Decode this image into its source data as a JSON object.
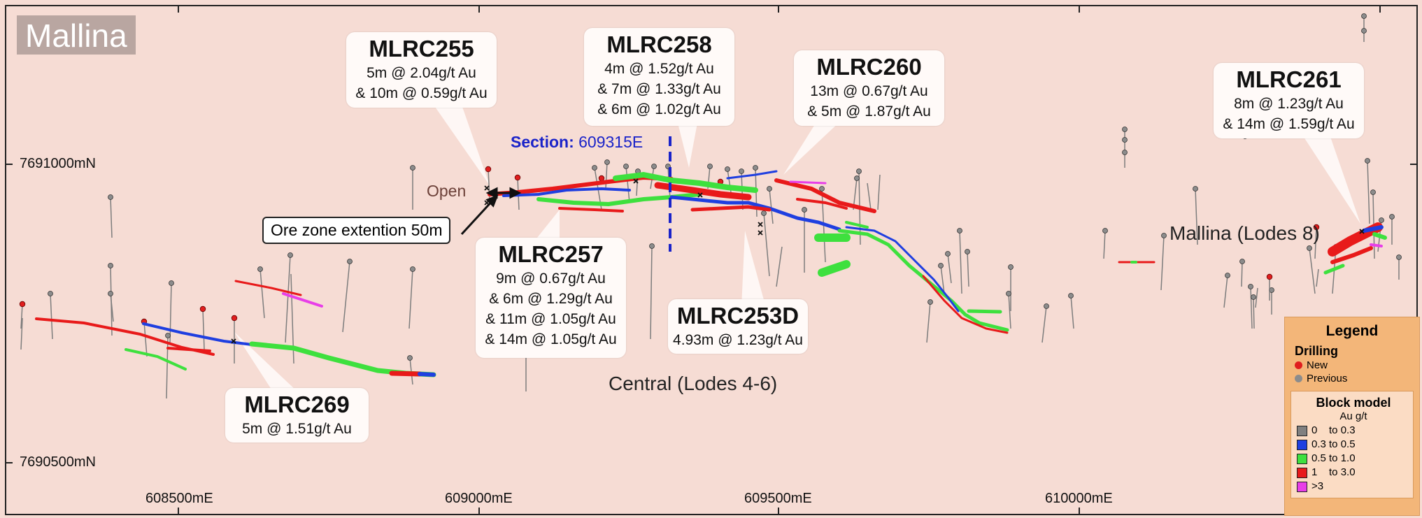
{
  "title": "Mallina",
  "y_axis_labels": [
    "7691000mN",
    "7690500mN"
  ],
  "x_axis_labels": [
    "608500mE",
    "609000mE",
    "609500mE",
    "610000mE"
  ],
  "section_label": {
    "prefix": "Section:",
    "value": "609315E"
  },
  "annotations": {
    "open": "Open",
    "ore_zone": "Ore zone extention 50m",
    "central": "Central (Lodes 4-6)",
    "mallina_lodes": "Mallina (Lodes 8)"
  },
  "callouts": {
    "mlrc255": {
      "hole": "MLRC255",
      "lines": [
        "5m @ 2.04g/t Au",
        "& 10m @ 0.59g/t Au"
      ]
    },
    "mlrc258": {
      "hole": "MLRC258",
      "lines": [
        "4m @ 1.52g/t Au",
        "& 7m @ 1.33g/t Au",
        "& 6m @ 1.02g/t Au"
      ]
    },
    "mlrc260": {
      "hole": "MLRC260",
      "lines": [
        "13m @ 0.67g/t Au",
        "& 5m @ 1.87g/t Au"
      ]
    },
    "mlrc261": {
      "hole": "MLRC261",
      "lines": [
        "8m @ 1.23g/t Au",
        "& 14m @ 1.59g/t Au"
      ]
    },
    "mlrc257": {
      "hole": "MLRC257",
      "lines": [
        "9m @ 0.67g/t Au",
        "& 6m @ 1.29g/t Au",
        "& 11m @ 1.05g/t Au",
        "& 14m @ 1.05g/t Au"
      ]
    },
    "mlrc253d": {
      "hole": "MLRC253D",
      "lines": [
        "4.93m @ 1.23g/t Au"
      ]
    },
    "mlrc269": {
      "hole": "MLRC269",
      "lines": [
        "5m @ 1.51g/t Au"
      ]
    }
  },
  "legend": {
    "title": "Legend",
    "drilling_title": "Drilling",
    "drilling": [
      {
        "label": "New",
        "color": "#e01e1e"
      },
      {
        "label": "Previous",
        "color": "#8c8c8c"
      }
    ],
    "block_title": "Block model",
    "block_unit": "Au g/t",
    "block": [
      {
        "label": "0    to 0.3",
        "color": "#808080"
      },
      {
        "label": "0.3 to 0.5",
        "color": "#1f3fe0"
      },
      {
        "label": "0.5 to 1.0",
        "color": "#3ee03e"
      },
      {
        "label": "1    to 3.0",
        "color": "#e81a1a"
      },
      {
        "label": ">3",
        "color": "#e83ee8"
      }
    ]
  },
  "colors": {
    "background": "#f6dcd4",
    "section_line": "#1a23c9",
    "grade_low": "#808080",
    "grade_0_3_0_5": "#1f3fe0",
    "grade_0_5_1_0": "#3ee03e",
    "grade_1_3": "#e81a1a",
    "grade_gt3": "#e83ee8"
  }
}
